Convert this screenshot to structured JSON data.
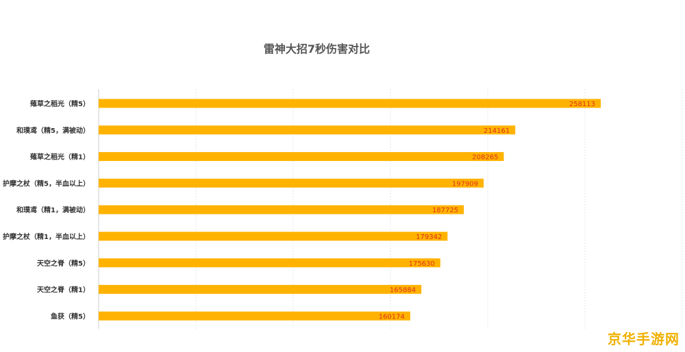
{
  "chart_data": {
    "type": "bar",
    "orientation": "horizontal",
    "title": "雷神大招7秒伤害对比",
    "categories": [
      "薙草之稻光（精5）",
      "和璞鸢（精5，满被动）",
      "薙草之稻光（精1）",
      "护摩之杖（精5，半血以上）",
      "和璞鸢（精1，满被动）",
      "护摩之杖（精1，半血以上）",
      "天空之脊（精5）",
      "天空之脊（精1）",
      "鱼获（精5）"
    ],
    "values": [
      258113,
      214161,
      208265,
      197909,
      187725,
      179342,
      175630,
      165884,
      160174
    ],
    "xlim": [
      0,
      300000
    ],
    "grid": true,
    "bar_color": "#ffb300",
    "label_color": "#e0301e"
  },
  "watermark": "京华手游网"
}
